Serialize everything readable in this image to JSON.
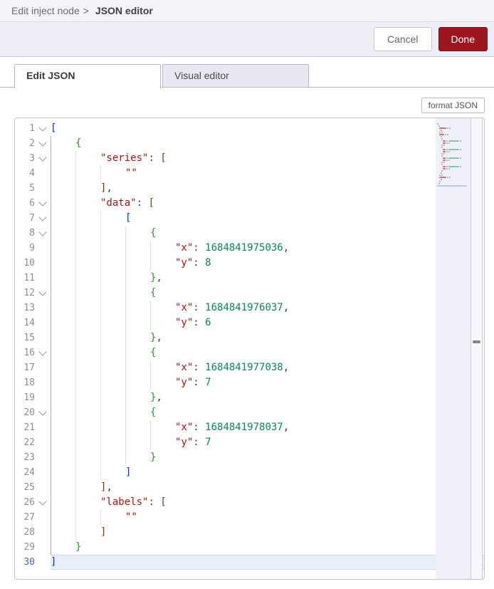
{
  "breadcrumb": {
    "prefix": "Edit inject node",
    "separator": ">",
    "title": "JSON editor"
  },
  "actions": {
    "cancel": "Cancel",
    "done": "Done"
  },
  "tabs": [
    {
      "label": "Edit JSON",
      "active": true
    },
    {
      "label": "Visual editor",
      "active": false
    }
  ],
  "toolbar": {
    "format_button": "format JSON"
  },
  "colors": {
    "done_button": "#9b161f",
    "key": "#A31515",
    "string": "#A31515",
    "number": "#098658",
    "punctuation": "#3b3b3b",
    "bracket_depth_1": "#0431FA",
    "bracket_depth_2": "#319331",
    "bracket_depth_3": "#7B3814"
  },
  "editor": {
    "line_count": 30,
    "current_line": 30,
    "fold_markers": [
      1,
      2,
      3,
      6,
      7,
      8,
      12,
      16,
      20,
      26
    ],
    "token_colors": {
      "key": "#A31515",
      "str": "#A31515",
      "num": "#098658",
      "pun": "#3b3b3b",
      "br1": "#0431FA",
      "br2": "#319331",
      "br3": "#7B3814"
    },
    "minimap_colors": {
      "key": "#cd6f6f",
      "str": "#cd6f6f",
      "num": "#7fc8a2",
      "pun": "#a6a8b3",
      "br1": "#a6a8b3",
      "br2": "#a6a8b3",
      "br3": "#a6a8b3",
      "current": "#b9c6ef"
    },
    "lines": [
      {
        "n": 1,
        "indent": 0,
        "tokens": [
          {
            "t": "[",
            "y": "br1"
          }
        ]
      },
      {
        "n": 2,
        "indent": 1,
        "tokens": [
          {
            "t": "{",
            "y": "br2"
          }
        ]
      },
      {
        "n": 3,
        "indent": 2,
        "tokens": [
          {
            "t": "\"series\"",
            "y": "key"
          },
          {
            "t": ": ",
            "y": "pun"
          },
          {
            "t": "[",
            "y": "br3"
          }
        ]
      },
      {
        "n": 4,
        "indent": 3,
        "tokens": [
          {
            "t": "\"\"",
            "y": "str"
          }
        ]
      },
      {
        "n": 5,
        "indent": 2,
        "tokens": [
          {
            "t": "]",
            "y": "br3"
          },
          {
            "t": ",",
            "y": "pun"
          }
        ]
      },
      {
        "n": 6,
        "indent": 2,
        "tokens": [
          {
            "t": "\"data\"",
            "y": "key"
          },
          {
            "t": ": ",
            "y": "pun"
          },
          {
            "t": "[",
            "y": "br3"
          }
        ]
      },
      {
        "n": 7,
        "indent": 3,
        "tokens": [
          {
            "t": "[",
            "y": "br1"
          }
        ]
      },
      {
        "n": 8,
        "indent": 4,
        "tokens": [
          {
            "t": "{",
            "y": "br2"
          }
        ]
      },
      {
        "n": 9,
        "indent": 5,
        "tokens": [
          {
            "t": "\"x\"",
            "y": "key"
          },
          {
            "t": ": ",
            "y": "pun"
          },
          {
            "t": "1684841975036",
            "y": "num"
          },
          {
            "t": ",",
            "y": "pun"
          }
        ]
      },
      {
        "n": 10,
        "indent": 5,
        "tokens": [
          {
            "t": "\"y\"",
            "y": "key"
          },
          {
            "t": ": ",
            "y": "pun"
          },
          {
            "t": "8",
            "y": "num"
          }
        ]
      },
      {
        "n": 11,
        "indent": 4,
        "tokens": [
          {
            "t": "}",
            "y": "br2"
          },
          {
            "t": ",",
            "y": "pun"
          }
        ]
      },
      {
        "n": 12,
        "indent": 4,
        "tokens": [
          {
            "t": "{",
            "y": "br2"
          }
        ]
      },
      {
        "n": 13,
        "indent": 5,
        "tokens": [
          {
            "t": "\"x\"",
            "y": "key"
          },
          {
            "t": ": ",
            "y": "pun"
          },
          {
            "t": "1684841976037",
            "y": "num"
          },
          {
            "t": ",",
            "y": "pun"
          }
        ]
      },
      {
        "n": 14,
        "indent": 5,
        "tokens": [
          {
            "t": "\"y\"",
            "y": "key"
          },
          {
            "t": ": ",
            "y": "pun"
          },
          {
            "t": "6",
            "y": "num"
          }
        ]
      },
      {
        "n": 15,
        "indent": 4,
        "tokens": [
          {
            "t": "}",
            "y": "br2"
          },
          {
            "t": ",",
            "y": "pun"
          }
        ]
      },
      {
        "n": 16,
        "indent": 4,
        "tokens": [
          {
            "t": "{",
            "y": "br2"
          }
        ]
      },
      {
        "n": 17,
        "indent": 5,
        "tokens": [
          {
            "t": "\"x\"",
            "y": "key"
          },
          {
            "t": ": ",
            "y": "pun"
          },
          {
            "t": "1684841977038",
            "y": "num"
          },
          {
            "t": ",",
            "y": "pun"
          }
        ]
      },
      {
        "n": 18,
        "indent": 5,
        "tokens": [
          {
            "t": "\"y\"",
            "y": "key"
          },
          {
            "t": ": ",
            "y": "pun"
          },
          {
            "t": "7",
            "y": "num"
          }
        ]
      },
      {
        "n": 19,
        "indent": 4,
        "tokens": [
          {
            "t": "}",
            "y": "br2"
          },
          {
            "t": ",",
            "y": "pun"
          }
        ]
      },
      {
        "n": 20,
        "indent": 4,
        "tokens": [
          {
            "t": "{",
            "y": "br2"
          }
        ]
      },
      {
        "n": 21,
        "indent": 5,
        "tokens": [
          {
            "t": "\"x\"",
            "y": "key"
          },
          {
            "t": ": ",
            "y": "pun"
          },
          {
            "t": "1684841978037",
            "y": "num"
          },
          {
            "t": ",",
            "y": "pun"
          }
        ]
      },
      {
        "n": 22,
        "indent": 5,
        "tokens": [
          {
            "t": "\"y\"",
            "y": "key"
          },
          {
            "t": ": ",
            "y": "pun"
          },
          {
            "t": "7",
            "y": "num"
          }
        ]
      },
      {
        "n": 23,
        "indent": 4,
        "tokens": [
          {
            "t": "}",
            "y": "br2"
          }
        ]
      },
      {
        "n": 24,
        "indent": 3,
        "tokens": [
          {
            "t": "]",
            "y": "br1"
          }
        ]
      },
      {
        "n": 25,
        "indent": 2,
        "tokens": [
          {
            "t": "]",
            "y": "br3"
          },
          {
            "t": ",",
            "y": "pun"
          }
        ]
      },
      {
        "n": 26,
        "indent": 2,
        "tokens": [
          {
            "t": "\"labels\"",
            "y": "key"
          },
          {
            "t": ": ",
            "y": "pun"
          },
          {
            "t": "[",
            "y": "br3"
          }
        ]
      },
      {
        "n": 27,
        "indent": 3,
        "tokens": [
          {
            "t": "\"\"",
            "y": "str"
          }
        ]
      },
      {
        "n": 28,
        "indent": 2,
        "tokens": [
          {
            "t": "]",
            "y": "br3"
          }
        ]
      },
      {
        "n": 29,
        "indent": 1,
        "tokens": [
          {
            "t": "}",
            "y": "br2"
          }
        ]
      },
      {
        "n": 30,
        "indent": 0,
        "tokens": [
          {
            "t": "]",
            "y": "br1"
          }
        ]
      }
    ]
  }
}
